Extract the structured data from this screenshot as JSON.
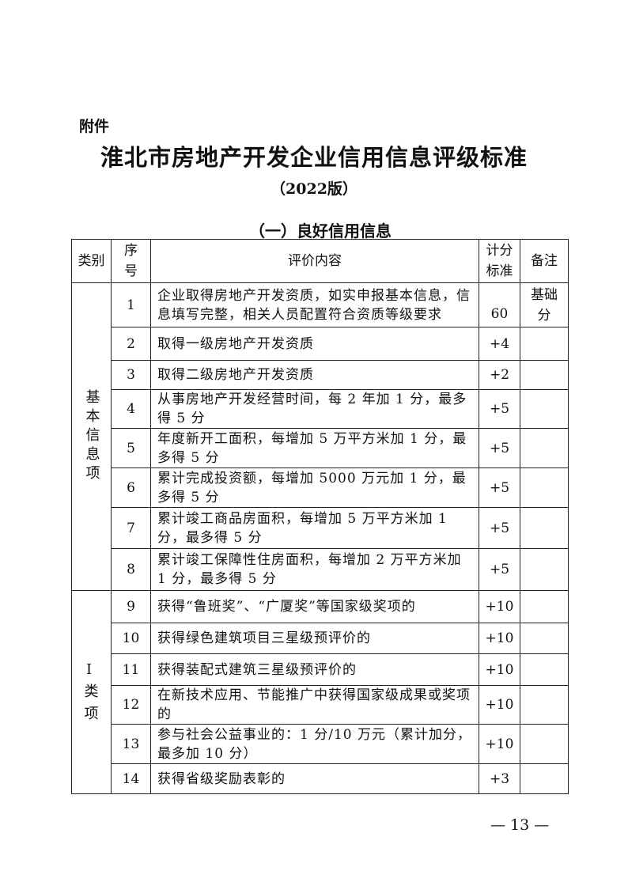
{
  "attachment_label": "附件",
  "title": "淮北市房地产开发企业信用信息评级标准",
  "version": "（2022版）",
  "section_heading": "（一）良好信用信息",
  "table": {
    "headers": {
      "category": "类别",
      "seq": "序号",
      "content": "评价内容",
      "score": "计分标准",
      "note": "备注"
    },
    "groups": [
      {
        "category": "基本信息项",
        "rows": [
          {
            "seq": "1",
            "content": "企业取得房地产开发资质，如实申报基本信息，信息填写完整，相关人员配置符合资质等级要求",
            "score": "60",
            "note": "基础分"
          },
          {
            "seq": "2",
            "content": "取得一级房地产开发资质",
            "score": "+4",
            "note": ""
          },
          {
            "seq": "3",
            "content": "取得二级房地产开发资质",
            "score": "+2",
            "note": ""
          },
          {
            "seq": "4",
            "content": "从事房地产开发经营时间，每 2 年加 1 分，最多得 5 分",
            "score": "+5",
            "note": ""
          },
          {
            "seq": "5",
            "content": "年度新开工面积，每增加 5 万平方米加 1 分，最多得 5 分",
            "score": "+5",
            "note": ""
          },
          {
            "seq": "6",
            "content": "累计完成投资额，每增加 5000 万元加 1 分，最多得 5 分",
            "score": "+5",
            "note": ""
          },
          {
            "seq": "7",
            "content": "累计竣工商品房面积，每增加 5 万平方米加 1 分，最多得 5 分",
            "score": "+5",
            "note": ""
          },
          {
            "seq": "8",
            "content": "累计竣工保障性住房面积，每增加 2 万平方米加 1 分，最多得 5 分",
            "score": "+5",
            "note": ""
          }
        ]
      },
      {
        "category": "I类项",
        "rows": [
          {
            "seq": "9",
            "content": "获得“鲁班奖”、“广厦奖”等国家级奖项的",
            "score": "+10",
            "note": ""
          },
          {
            "seq": "10",
            "content": "获得绿色建筑项目三星级预评价的",
            "score": "+10",
            "note": ""
          },
          {
            "seq": "11",
            "content": "获得装配式建筑三星级预评价的",
            "score": "+10",
            "note": ""
          },
          {
            "seq": "12",
            "content": "在新技术应用、节能推广中获得国家级成果或奖项的",
            "score": "+10",
            "note": ""
          },
          {
            "seq": "13",
            "content": "参与社会公益事业的：1 分/10 万元（累计加分，最多加 10 分）",
            "score": "+10",
            "note": ""
          },
          {
            "seq": "14",
            "content": "获得省级奖励表彰的",
            "score": "+3",
            "note": ""
          }
        ]
      }
    ]
  },
  "page_number": "— 13 —"
}
